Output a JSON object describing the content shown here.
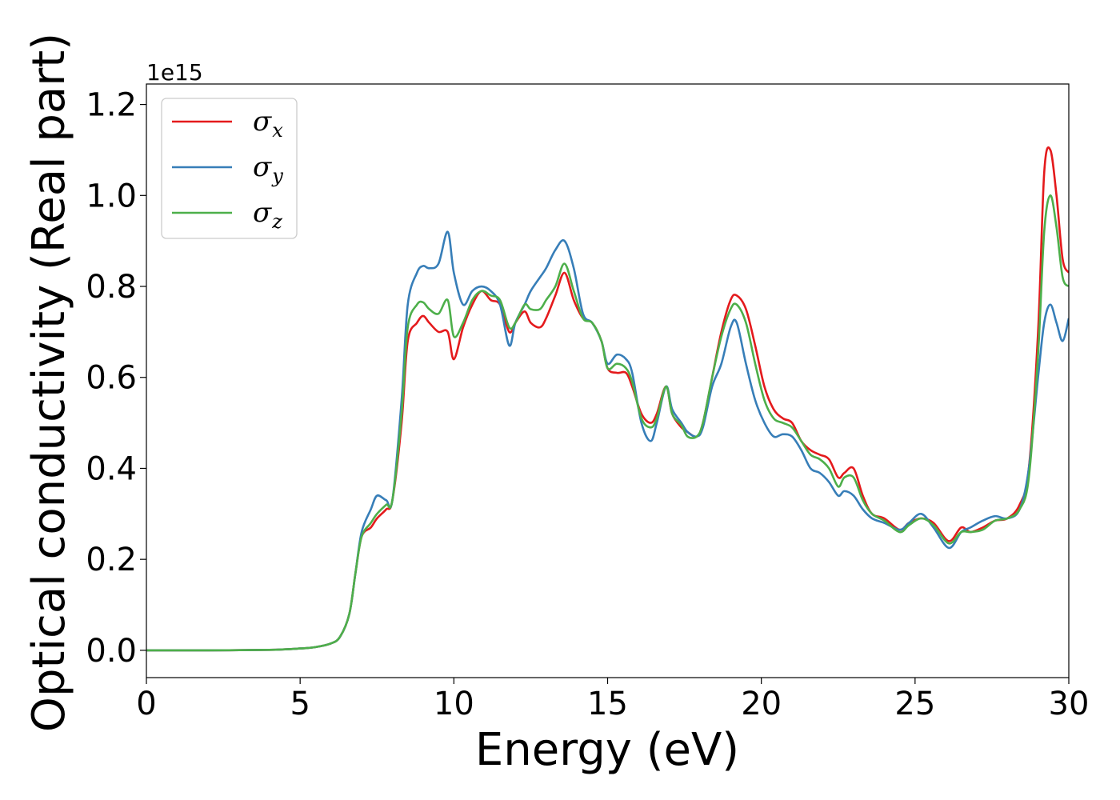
{
  "chart_data": {
    "type": "line",
    "xlabel": "Energy (eV)",
    "ylabel": "Optical conductivity (Real part)",
    "y_offset_label": "1e15",
    "xlim": [
      0,
      30
    ],
    "ylim": [
      -0.06,
      1.245
    ],
    "xticks": [
      0,
      5,
      10,
      15,
      20,
      25,
      30
    ],
    "xtick_labels": [
      "0",
      "5",
      "10",
      "15",
      "20",
      "25",
      "30"
    ],
    "yticks": [
      0.0,
      0.2,
      0.4,
      0.6,
      0.8,
      1.0,
      1.2
    ],
    "ytick_labels": [
      "0.0",
      "0.2",
      "0.4",
      "0.6",
      "0.8",
      "1.0",
      "1.2"
    ],
    "grid": false,
    "legend_position": "top-left",
    "series": [
      {
        "name": "σx",
        "symbol": "σ",
        "subscript": "x",
        "color": "#e41a1c",
        "x": [
          0,
          2,
          4,
          5,
          5.5,
          6,
          6.3,
          6.6,
          6.8,
          7.0,
          7.3,
          7.5,
          7.8,
          8.0,
          8.3,
          8.5,
          8.8,
          9.0,
          9.2,
          9.5,
          9.8,
          10.0,
          10.3,
          10.6,
          10.9,
          11.2,
          11.5,
          11.8,
          12.0,
          12.3,
          12.5,
          12.8,
          13.0,
          13.3,
          13.6,
          13.9,
          14.2,
          14.5,
          14.8,
          15.0,
          15.3,
          15.6,
          15.8,
          16.1,
          16.4,
          16.6,
          16.9,
          17.1,
          17.4,
          17.6,
          17.9,
          18.1,
          18.4,
          18.7,
          19.0,
          19.2,
          19.5,
          19.8,
          20.1,
          20.4,
          20.7,
          21.0,
          21.3,
          21.6,
          21.9,
          22.2,
          22.5,
          22.7,
          23.0,
          23.3,
          23.6,
          24.0,
          24.5,
          24.8,
          25.2,
          25.6,
          26.1,
          26.5,
          26.8,
          27.2,
          27.6,
          28.0,
          28.4,
          28.7,
          29.0,
          29.2,
          29.4,
          29.6,
          29.8,
          30.0
        ],
        "values": [
          0.0,
          0.0,
          0.001,
          0.004,
          0.007,
          0.015,
          0.03,
          0.08,
          0.17,
          0.25,
          0.27,
          0.29,
          0.31,
          0.33,
          0.5,
          0.68,
          0.72,
          0.735,
          0.72,
          0.7,
          0.7,
          0.64,
          0.71,
          0.76,
          0.79,
          0.77,
          0.76,
          0.7,
          0.72,
          0.745,
          0.72,
          0.71,
          0.73,
          0.78,
          0.83,
          0.77,
          0.73,
          0.72,
          0.68,
          0.62,
          0.61,
          0.61,
          0.58,
          0.52,
          0.5,
          0.52,
          0.58,
          0.52,
          0.49,
          0.48,
          0.47,
          0.5,
          0.6,
          0.7,
          0.77,
          0.78,
          0.75,
          0.67,
          0.58,
          0.53,
          0.51,
          0.5,
          0.46,
          0.44,
          0.43,
          0.42,
          0.38,
          0.39,
          0.4,
          0.34,
          0.3,
          0.29,
          0.265,
          0.28,
          0.29,
          0.28,
          0.24,
          0.27,
          0.26,
          0.27,
          0.285,
          0.29,
          0.32,
          0.4,
          0.7,
          1.05,
          1.1,
          1.0,
          0.86,
          0.83
        ]
      },
      {
        "name": "σy",
        "symbol": "σ",
        "subscript": "y",
        "color": "#377eb8",
        "x": [
          0,
          2,
          4,
          5,
          5.5,
          6,
          6.3,
          6.6,
          6.8,
          7.0,
          7.3,
          7.5,
          7.8,
          8.0,
          8.3,
          8.5,
          8.8,
          9.0,
          9.2,
          9.5,
          9.8,
          10.0,
          10.3,
          10.6,
          10.9,
          11.2,
          11.5,
          11.8,
          12.0,
          12.3,
          12.5,
          12.8,
          13.0,
          13.3,
          13.6,
          13.9,
          14.2,
          14.5,
          14.8,
          15.0,
          15.3,
          15.6,
          15.8,
          16.1,
          16.4,
          16.6,
          16.9,
          17.1,
          17.4,
          17.6,
          17.9,
          18.1,
          18.4,
          18.7,
          19.0,
          19.2,
          19.5,
          19.8,
          20.1,
          20.4,
          20.7,
          21.0,
          21.3,
          21.6,
          21.9,
          22.2,
          22.5,
          22.7,
          23.0,
          23.3,
          23.6,
          24.0,
          24.5,
          24.8,
          25.2,
          25.6,
          26.1,
          26.5,
          26.8,
          27.2,
          27.6,
          28.0,
          28.4,
          28.7,
          29.0,
          29.2,
          29.4,
          29.6,
          29.8,
          30.0
        ],
        "values": [
          0.0,
          0.0,
          0.001,
          0.004,
          0.007,
          0.015,
          0.03,
          0.08,
          0.17,
          0.26,
          0.31,
          0.34,
          0.33,
          0.33,
          0.55,
          0.76,
          0.83,
          0.845,
          0.84,
          0.85,
          0.92,
          0.83,
          0.76,
          0.79,
          0.8,
          0.79,
          0.76,
          0.67,
          0.72,
          0.76,
          0.79,
          0.82,
          0.84,
          0.88,
          0.9,
          0.84,
          0.74,
          0.72,
          0.68,
          0.63,
          0.65,
          0.64,
          0.61,
          0.5,
          0.46,
          0.5,
          0.58,
          0.53,
          0.5,
          0.48,
          0.47,
          0.49,
          0.58,
          0.63,
          0.71,
          0.72,
          0.63,
          0.55,
          0.5,
          0.47,
          0.475,
          0.47,
          0.44,
          0.4,
          0.39,
          0.37,
          0.34,
          0.35,
          0.34,
          0.31,
          0.29,
          0.28,
          0.265,
          0.28,
          0.3,
          0.27,
          0.225,
          0.26,
          0.27,
          0.285,
          0.295,
          0.29,
          0.31,
          0.4,
          0.6,
          0.72,
          0.76,
          0.72,
          0.68,
          0.73
        ]
      },
      {
        "name": "σz",
        "symbol": "σ",
        "subscript": "z",
        "color": "#4daf4a",
        "x": [
          0,
          2,
          4,
          5,
          5.5,
          6,
          6.3,
          6.6,
          6.8,
          7.0,
          7.3,
          7.5,
          7.8,
          8.0,
          8.3,
          8.5,
          8.8,
          9.0,
          9.2,
          9.5,
          9.8,
          10.0,
          10.3,
          10.6,
          10.9,
          11.2,
          11.5,
          11.8,
          12.0,
          12.3,
          12.5,
          12.8,
          13.0,
          13.3,
          13.6,
          13.9,
          14.2,
          14.5,
          14.8,
          15.0,
          15.3,
          15.6,
          15.8,
          16.1,
          16.4,
          16.6,
          16.9,
          17.1,
          17.4,
          17.6,
          17.9,
          18.1,
          18.4,
          18.7,
          19.0,
          19.2,
          19.5,
          19.8,
          20.1,
          20.4,
          20.7,
          21.0,
          21.3,
          21.6,
          21.9,
          22.2,
          22.5,
          22.7,
          23.0,
          23.3,
          23.6,
          24.0,
          24.5,
          24.8,
          25.2,
          25.6,
          26.1,
          26.5,
          26.8,
          27.2,
          27.6,
          28.0,
          28.4,
          28.7,
          29.0,
          29.2,
          29.4,
          29.6,
          29.8,
          30.0
        ],
        "values": [
          0.0,
          0.0,
          0.001,
          0.004,
          0.007,
          0.015,
          0.03,
          0.08,
          0.17,
          0.25,
          0.28,
          0.3,
          0.32,
          0.33,
          0.52,
          0.71,
          0.76,
          0.765,
          0.75,
          0.74,
          0.77,
          0.69,
          0.72,
          0.77,
          0.79,
          0.78,
          0.77,
          0.71,
          0.72,
          0.76,
          0.75,
          0.75,
          0.77,
          0.8,
          0.85,
          0.79,
          0.73,
          0.72,
          0.68,
          0.62,
          0.63,
          0.62,
          0.59,
          0.51,
          0.49,
          0.51,
          0.58,
          0.52,
          0.495,
          0.47,
          0.47,
          0.5,
          0.6,
          0.69,
          0.75,
          0.76,
          0.72,
          0.63,
          0.55,
          0.51,
          0.5,
          0.49,
          0.46,
          0.43,
          0.42,
          0.4,
          0.36,
          0.38,
          0.38,
          0.33,
          0.3,
          0.285,
          0.26,
          0.275,
          0.29,
          0.275,
          0.235,
          0.26,
          0.26,
          0.265,
          0.285,
          0.29,
          0.31,
          0.38,
          0.65,
          0.92,
          1.0,
          0.93,
          0.82,
          0.8
        ]
      }
    ]
  }
}
